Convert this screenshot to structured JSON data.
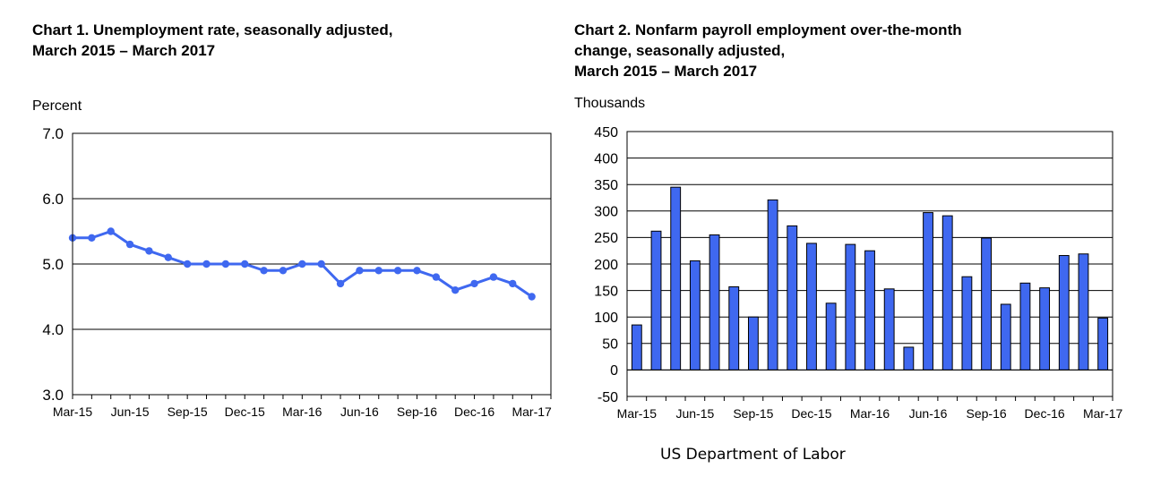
{
  "chart_data": [
    {
      "type": "line",
      "title_lines": [
        "Chart 1. Unemployment rate, seasonally adjusted,",
        "March 2015 – March 2017"
      ],
      "ylabel": "Percent",
      "ylim": [
        3.0,
        7.0
      ],
      "yticks": [
        "3.0",
        "4.0",
        "5.0",
        "6.0",
        "7.0"
      ],
      "x_tick_labels": [
        "Mar-15",
        "Jun-15",
        "Sep-15",
        "Dec-15",
        "Mar-16",
        "Jun-16",
        "Sep-16",
        "Dec-16",
        "Mar-17"
      ],
      "x": [
        "Mar-15",
        "Apr-15",
        "May-15",
        "Jun-15",
        "Jul-15",
        "Aug-15",
        "Sep-15",
        "Oct-15",
        "Nov-15",
        "Dec-15",
        "Jan-16",
        "Feb-16",
        "Mar-16",
        "Apr-16",
        "May-16",
        "Jun-16",
        "Jul-16",
        "Aug-16",
        "Sep-16",
        "Oct-16",
        "Nov-16",
        "Dec-16",
        "Jan-17",
        "Feb-17",
        "Mar-17"
      ],
      "values": [
        5.4,
        5.4,
        5.5,
        5.3,
        5.2,
        5.1,
        5.0,
        5.0,
        5.0,
        5.0,
        4.9,
        4.9,
        5.0,
        5.0,
        4.7,
        4.9,
        4.9,
        4.9,
        4.9,
        4.8,
        4.6,
        4.7,
        4.8,
        4.7,
        4.5
      ],
      "color": "#3f68f0",
      "grid": true
    },
    {
      "type": "bar",
      "title_lines": [
        "Chart 2. Nonfarm payroll employment over-the-month",
        "change, seasonally adjusted,",
        "March 2015 – March 2017"
      ],
      "ylabel": "Thousands",
      "ylim": [
        -50,
        450
      ],
      "yticks": [
        "-50",
        "0",
        "50",
        "100",
        "150",
        "200",
        "250",
        "300",
        "350",
        "400",
        "450"
      ],
      "x_tick_labels": [
        "Mar-15",
        "Jun-15",
        "Sep-15",
        "Dec-15",
        "Mar-16",
        "Jun-16",
        "Sep-16",
        "Dec-16",
        "Mar-17"
      ],
      "x": [
        "Mar-15",
        "Apr-15",
        "May-15",
        "Jun-15",
        "Jul-15",
        "Aug-15",
        "Sep-15",
        "Oct-15",
        "Nov-15",
        "Dec-15",
        "Jan-16",
        "Feb-16",
        "Mar-16",
        "Apr-16",
        "May-16",
        "Jun-16",
        "Jul-16",
        "Aug-16",
        "Sep-16",
        "Oct-16",
        "Nov-16",
        "Dec-16",
        "Jan-17",
        "Feb-17",
        "Mar-17"
      ],
      "values": [
        85,
        262,
        345,
        206,
        255,
        157,
        100,
        321,
        272,
        239,
        126,
        237,
        225,
        153,
        43,
        297,
        291,
        176,
        249,
        124,
        164,
        155,
        216,
        219,
        98
      ],
      "color": "#3f68f0",
      "grid": true
    }
  ],
  "footer": "US Department of Labor"
}
